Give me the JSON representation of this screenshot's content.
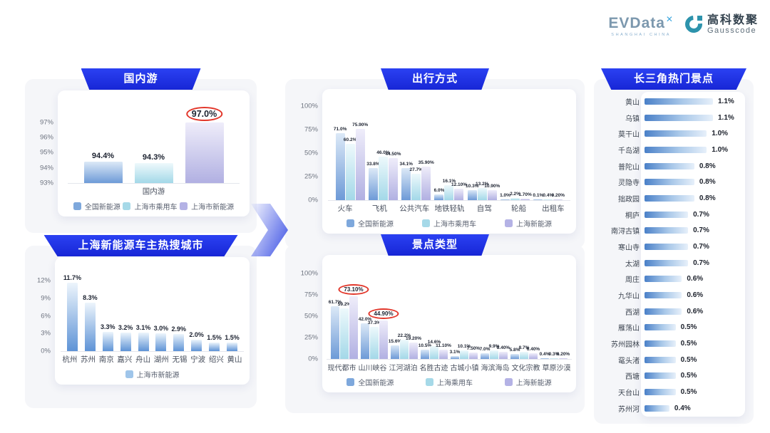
{
  "header": {
    "evdata_logo": "EVData",
    "evdata_mark": "✕",
    "evdata_subtitle": "SHANGHAI CHINA",
    "gausscode_cn": "高科数聚",
    "gausscode_en": "Gausscode"
  },
  "colors": {
    "banner_blue": "#1e2be0",
    "series_blue": "#6d9ad7",
    "series_cyan": "#a3d8e8",
    "series_purple": "#b1b0e2",
    "city_blue": "#5e93d6",
    "highlight_red": "#e2372b"
  },
  "chart_data": [
    {
      "type": "bar",
      "title": "国内游",
      "categories": [
        "国内游"
      ],
      "yticks": [
        "93%",
        "94%",
        "95%",
        "96%",
        "97%"
      ],
      "ylim": [
        93,
        97.7
      ],
      "legend_position": "bottom",
      "series": [
        {
          "name": "全国新能源",
          "color": "blue",
          "values": [
            94.4
          ],
          "labels": [
            "94.4%"
          ]
        },
        {
          "name": "上海市乘用车",
          "color": "cyan",
          "values": [
            94.3
          ],
          "labels": [
            "94.3%"
          ]
        },
        {
          "name": "上海市新能源",
          "color": "purple",
          "values": [
            97.0
          ],
          "labels": [
            "97.0%"
          ]
        }
      ],
      "circled_labels": [
        "97.0%"
      ]
    },
    {
      "type": "bar",
      "title": "上海新能源车主热搜城市",
      "categories": [
        "杭州",
        "苏州",
        "南京",
        "嘉兴",
        "舟山",
        "湖州",
        "无锡",
        "宁波",
        "绍兴",
        "黄山"
      ],
      "yticks": [
        "0%",
        "3%",
        "6%",
        "9%",
        "12%"
      ],
      "ylim": [
        0,
        13.6
      ],
      "legend_position": "bottom",
      "series": [
        {
          "name": "上海市新能源",
          "color": "city",
          "values": [
            11.7,
            8.3,
            3.3,
            3.2,
            3.1,
            3.0,
            2.9,
            2.0,
            1.5,
            1.5
          ],
          "labels": [
            "11.7%",
            "8.3%",
            "3.3%",
            "3.2%",
            "3.1%",
            "3.0%",
            "2.9%",
            "2.0%",
            "1.5%",
            "1.5%"
          ]
        }
      ]
    },
    {
      "type": "bar",
      "title": "出行方式",
      "categories": [
        "火车",
        "飞机",
        "公共汽车",
        "地铁轻轨",
        "自驾",
        "轮船",
        "出租车"
      ],
      "yticks": [
        "0%",
        "25%",
        "50%",
        "75%",
        "100%"
      ],
      "ylim": [
        0,
        100
      ],
      "legend_position": "bottom",
      "series": [
        {
          "name": "全国新能源",
          "color": "blue",
          "values": [
            71.0,
            33.8,
            34.1,
            6.0,
            10.3,
            1.0,
            0.1
          ],
          "labels": [
            "71.0%",
            "33.8%",
            "34.1%",
            "6.0%",
            "10.3%",
            "1.0%",
            "0.1%"
          ]
        },
        {
          "name": "上海市乘用车",
          "color": "cyan",
          "values": [
            60.2,
            46.0,
            27.7,
            16.1,
            13.2,
            2.2,
            0.4
          ],
          "labels": [
            "60.2%",
            "46.0%",
            "27.7%",
            "16.1%",
            "13.2%",
            "2.2%",
            "0.4%"
          ]
        },
        {
          "name": "上海新能源",
          "color": "purple",
          "values": [
            75.9,
            44.5,
            35.9,
            12.1,
            10.9,
            1.7,
            0.2
          ],
          "labels": [
            "75.90%",
            "44.50%",
            "35.90%",
            "12.10%",
            "10.90%",
            "1.70%",
            "0.20%"
          ]
        }
      ]
    },
    {
      "type": "bar",
      "title": "景点类型",
      "categories": [
        "现代都市",
        "山川峡谷",
        "江河湖泊",
        "名胜古迹",
        "古城小镇",
        "海滨海岛",
        "文化宗教",
        "草原沙漠"
      ],
      "yticks": [
        "0%",
        "25%",
        "50%",
        "75%",
        "100%"
      ],
      "ylim": [
        0,
        100
      ],
      "legend_position": "bottom",
      "series": [
        {
          "name": "全国新能源",
          "color": "blue",
          "values": [
            61.7,
            42.0,
            15.6,
            10.5,
            3.1,
            7.0,
            5.8,
            0.4
          ],
          "labels": [
            "61.7%",
            "42.0%",
            "15.6%",
            "10.5%",
            "3.1%",
            "7.0%",
            "5.8%",
            "0.4%"
          ]
        },
        {
          "name": "上海乘用车",
          "color": "cyan",
          "values": [
            59.2,
            37.3,
            22.2,
            14.6,
            10.1,
            9.9,
            8.7,
            0.3
          ],
          "labels": [
            "59.2%",
            "37.3%",
            "22.2%",
            "14.6%",
            "10.1%",
            "9.9%",
            "8.7%",
            "0.3%"
          ]
        },
        {
          "name": "上海新能源",
          "color": "purple",
          "values": [
            73.1,
            44.9,
            19.2,
            11.1,
            7.5,
            8.4,
            6.4,
            0.2
          ],
          "labels": [
            "73.10%",
            "44.90%",
            "19.20%",
            "11.10%",
            "7.50%",
            "8.40%",
            "6.40%",
            "0.20%"
          ]
        }
      ],
      "circled_labels": [
        "73.10%",
        "44.90%"
      ]
    },
    {
      "type": "bar",
      "orientation": "horizontal",
      "title": "长三角热门景点",
      "categories": [
        "黄山",
        "乌镇",
        "莫干山",
        "千岛湖",
        "普陀山",
        "灵隐寺",
        "拙政园",
        "桐庐",
        "南浔古镇",
        "寒山寺",
        "太湖",
        "周庄",
        "九华山",
        "西湖",
        "雁荡山",
        "苏州园林",
        "鼋头渚",
        "西塘",
        "天台山",
        "苏州河"
      ],
      "values": [
        1.1,
        1.1,
        1.0,
        1.0,
        0.8,
        0.8,
        0.8,
        0.7,
        0.7,
        0.7,
        0.7,
        0.6,
        0.6,
        0.6,
        0.5,
        0.5,
        0.5,
        0.5,
        0.5,
        0.4
      ],
      "labels": [
        "1.1%",
        "1.1%",
        "1.0%",
        "1.0%",
        "0.8%",
        "0.8%",
        "0.8%",
        "0.7%",
        "0.7%",
        "0.7%",
        "0.7%",
        "0.6%",
        "0.6%",
        "0.6%",
        "0.5%",
        "0.5%",
        "0.5%",
        "0.5%",
        "0.5%",
        "0.4%"
      ],
      "xlim": [
        0,
        1.1
      ]
    }
  ]
}
